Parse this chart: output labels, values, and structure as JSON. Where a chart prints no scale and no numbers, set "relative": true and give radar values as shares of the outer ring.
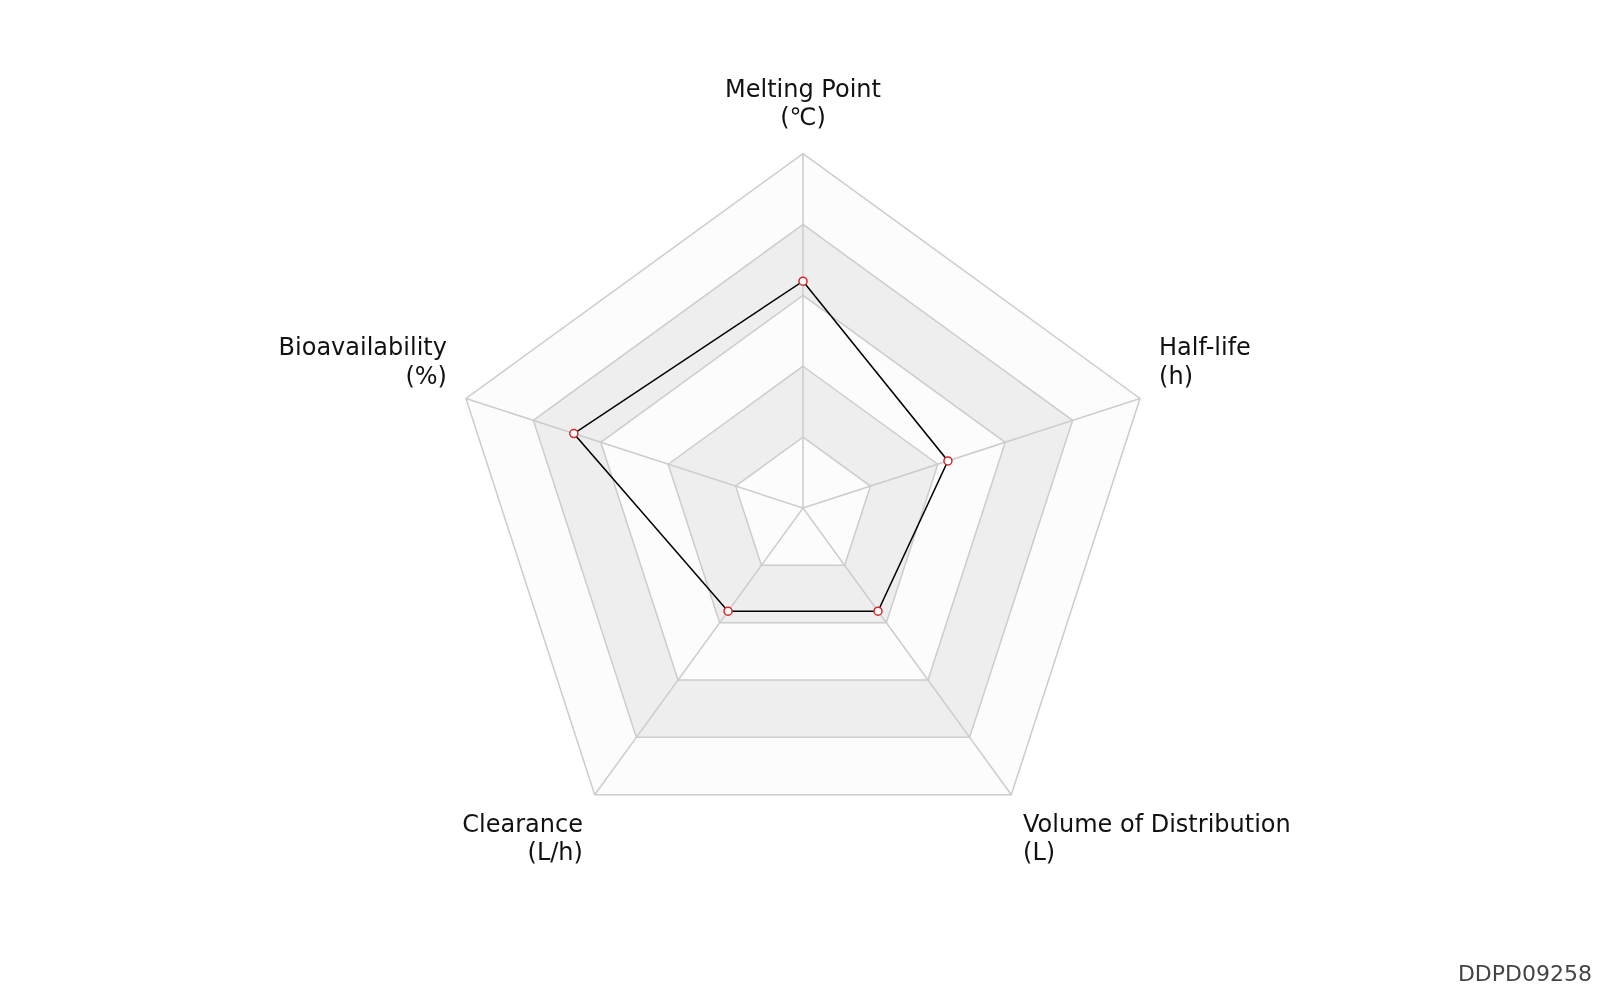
{
  "chart_data": {
    "type": "radar",
    "relative": true,
    "categories": [
      "Melting Point (℃)",
      "Half-life (h)",
      "Volume of Distribution (L)",
      "Clearance (L/h)",
      "Bioavailability (%)"
    ],
    "series": [
      {
        "color": "#000000",
        "values": [
          0.64,
          0.43,
          0.36,
          0.36,
          0.68
        ]
      }
    ],
    "marker": "circle",
    "legend": false,
    "annotations": [
      "DDPD09258"
    ]
  }
}
